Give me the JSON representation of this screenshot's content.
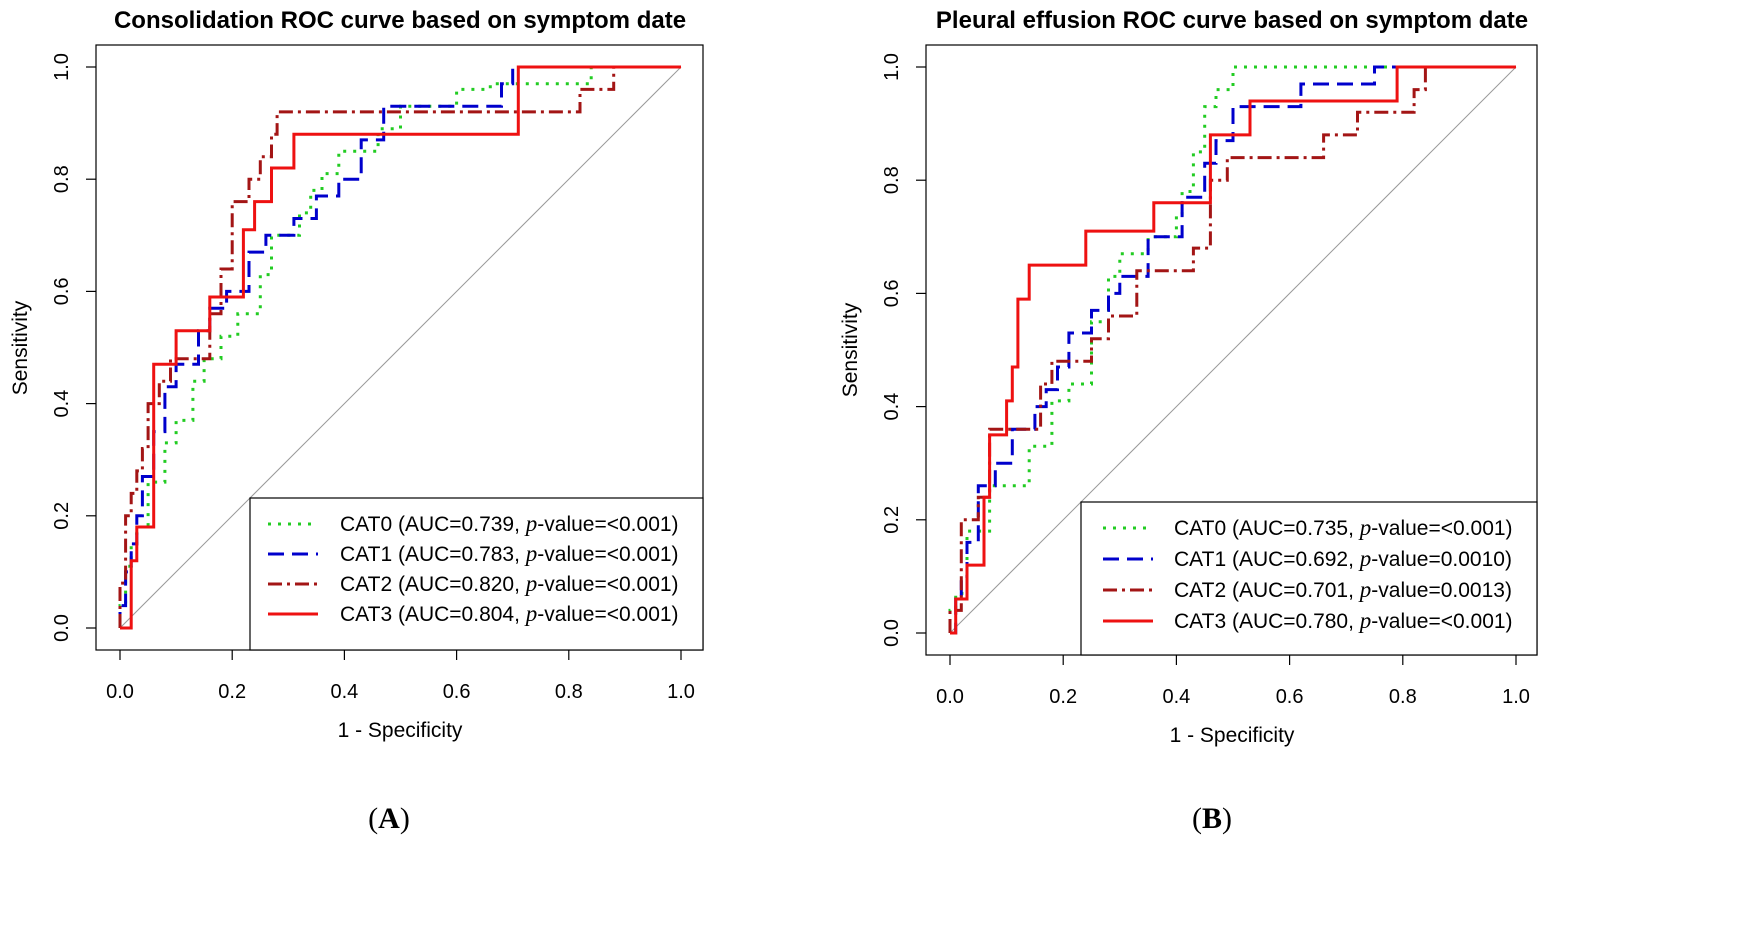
{
  "chart_data": [
    {
      "type": "line",
      "panel": "A",
      "panel_label": {
        "open": "(",
        "letter": "A",
        "close": ")"
      },
      "title": "Consolidation ROC curve based on symptom date",
      "xlabel": "1 - Specificity",
      "ylabel": "Sensitivity",
      "xlim": [
        0,
        1
      ],
      "ylim": [
        0,
        1
      ],
      "xticks": [
        0,
        0.2,
        0.4,
        0.6,
        0.8,
        1
      ],
      "xtick_labels": [
        "0.0",
        "0.2",
        "0.4",
        "0.6",
        "0.8",
        "1.0"
      ],
      "yticks": [
        0,
        0.2,
        0.4,
        0.6,
        0.8,
        1
      ],
      "ytick_labels": [
        "0.0",
        "0.2",
        "0.4",
        "0.6",
        "0.8",
        "1.0"
      ],
      "legend_position": "bottom-right",
      "diagonal": true,
      "series": [
        {
          "name": "CAT0",
          "color": "#22cc22",
          "dash": "dotted",
          "legend": {
            "prefix": "CAT0 (AUC=0.739, ",
            "p": "p",
            "suffix": "-value=<0.001)"
          },
          "x": [
            0,
            0,
            0.01,
            0.01,
            0.02,
            0.02,
            0.03,
            0.03,
            0.05,
            0.05,
            0.08,
            0.08,
            0.1,
            0.1,
            0.13,
            0.13,
            0.15,
            0.15,
            0.18,
            0.18,
            0.21,
            0.21,
            0.25,
            0.25,
            0.27,
            0.27,
            0.32,
            0.32,
            0.34,
            0.34,
            0.36,
            0.36,
            0.39,
            0.39,
            0.46,
            0.46,
            0.5,
            0.5,
            0.6,
            0.6,
            0.66,
            0.66,
            0.84,
            0.84,
            1.0
          ],
          "y": [
            0,
            0.04,
            0.04,
            0.11,
            0.11,
            0.15,
            0.15,
            0.18,
            0.18,
            0.26,
            0.26,
            0.33,
            0.33,
            0.37,
            0.37,
            0.44,
            0.44,
            0.48,
            0.48,
            0.52,
            0.52,
            0.56,
            0.56,
            0.63,
            0.63,
            0.7,
            0.7,
            0.74,
            0.74,
            0.78,
            0.78,
            0.81,
            0.81,
            0.85,
            0.85,
            0.89,
            0.89,
            0.93,
            0.93,
            0.96,
            0.96,
            0.97,
            0.97,
            1.0,
            1.0
          ]
        },
        {
          "name": "CAT1",
          "color": "#0000cc",
          "dash": "dashed",
          "legend": {
            "prefix": "CAT1 (AUC=0.783, ",
            "p": "p",
            "suffix": "-value=<0.001)"
          },
          "x": [
            0,
            0,
            0.01,
            0.01,
            0.02,
            0.02,
            0.03,
            0.03,
            0.04,
            0.04,
            0.06,
            0.06,
            0.08,
            0.08,
            0.1,
            0.1,
            0.14,
            0.14,
            0.16,
            0.16,
            0.19,
            0.19,
            0.23,
            0.23,
            0.26,
            0.26,
            0.31,
            0.31,
            0.35,
            0.35,
            0.39,
            0.39,
            0.43,
            0.43,
            0.47,
            0.47,
            0.62,
            0.62,
            0.68,
            0.68,
            0.7,
            0.7,
            1.0
          ],
          "y": [
            0,
            0.04,
            0.04,
            0.1,
            0.1,
            0.15,
            0.15,
            0.2,
            0.2,
            0.27,
            0.27,
            0.35,
            0.35,
            0.43,
            0.43,
            0.47,
            0.47,
            0.53,
            0.53,
            0.57,
            0.57,
            0.6,
            0.6,
            0.67,
            0.67,
            0.7,
            0.7,
            0.73,
            0.73,
            0.77,
            0.77,
            0.8,
            0.8,
            0.87,
            0.87,
            0.93,
            0.93,
            0.93,
            0.93,
            0.97,
            0.97,
            1.0,
            1.0
          ]
        },
        {
          "name": "CAT2",
          "color": "#a31515",
          "dash": "dashdot",
          "legend": {
            "prefix": "CAT2 (AUC=0.820, ",
            "p": "p",
            "suffix": "-value=<0.001)"
          },
          "x": [
            0,
            0,
            0.01,
            0.01,
            0.02,
            0.02,
            0.03,
            0.03,
            0.04,
            0.04,
            0.05,
            0.05,
            0.07,
            0.07,
            0.09,
            0.09,
            0.11,
            0.11,
            0.16,
            0.16,
            0.18,
            0.18,
            0.2,
            0.2,
            0.23,
            0.23,
            0.25,
            0.25,
            0.27,
            0.27,
            0.28,
            0.28,
            0.78,
            0.78,
            0.82,
            0.82,
            0.88,
            0.88,
            1.0
          ],
          "y": [
            0,
            0.08,
            0.08,
            0.2,
            0.2,
            0.24,
            0.24,
            0.28,
            0.28,
            0.32,
            0.32,
            0.4,
            0.4,
            0.44,
            0.44,
            0.48,
            0.48,
            0.48,
            0.48,
            0.56,
            0.56,
            0.64,
            0.64,
            0.76,
            0.76,
            0.8,
            0.8,
            0.84,
            0.84,
            0.88,
            0.88,
            0.92,
            0.92,
            0.92,
            0.92,
            0.96,
            0.96,
            1.0,
            1.0
          ]
        },
        {
          "name": "CAT3",
          "color": "#ee1111",
          "dash": "solid",
          "legend": {
            "prefix": "CAT3 (AUC=0.804, ",
            "p": "p",
            "suffix": "-value=<0.001)"
          },
          "x": [
            0,
            0.02,
            0.02,
            0.03,
            0.03,
            0.06,
            0.06,
            0.1,
            0.1,
            0.16,
            0.16,
            0.22,
            0.22,
            0.24,
            0.24,
            0.27,
            0.27,
            0.31,
            0.31,
            0.71,
            0.71,
            1.0
          ],
          "y": [
            0,
            0,
            0.12,
            0.12,
            0.18,
            0.18,
            0.47,
            0.47,
            0.53,
            0.53,
            0.59,
            0.59,
            0.71,
            0.71,
            0.76,
            0.76,
            0.82,
            0.82,
            0.88,
            0.88,
            1.0,
            1.0
          ]
        }
      ]
    },
    {
      "type": "line",
      "panel": "B",
      "panel_label": {
        "open": "(",
        "letter": "B",
        "close": ")"
      },
      "title": "Pleural effusion ROC curve based on symptom date",
      "xlabel": "1 - Specificity",
      "ylabel": "Sensitivity",
      "xlim": [
        0,
        1
      ],
      "ylim": [
        0,
        1
      ],
      "xticks": [
        0,
        0.2,
        0.4,
        0.6,
        0.8,
        1
      ],
      "xtick_labels": [
        "0.0",
        "0.2",
        "0.4",
        "0.6",
        "0.8",
        "1.0"
      ],
      "yticks": [
        0,
        0.2,
        0.4,
        0.6,
        0.8,
        1
      ],
      "ytick_labels": [
        "0.0",
        "0.2",
        "0.4",
        "0.6",
        "0.8",
        "1.0"
      ],
      "legend_position": "bottom-right",
      "diagonal": true,
      "series": [
        {
          "name": "CAT0",
          "color": "#22cc22",
          "dash": "dotted",
          "legend": {
            "prefix": "CAT0 (AUC=0.735, ",
            "p": "p",
            "suffix": "-value=<0.001)"
          },
          "x": [
            0,
            0,
            0.01,
            0.01,
            0.03,
            0.03,
            0.07,
            0.07,
            0.14,
            0.14,
            0.18,
            0.18,
            0.21,
            0.21,
            0.25,
            0.25,
            0.28,
            0.28,
            0.3,
            0.3,
            0.35,
            0.35,
            0.4,
            0.4,
            0.41,
            0.41,
            0.43,
            0.43,
            0.45,
            0.45,
            0.47,
            0.47,
            0.5,
            0.5,
            0.66,
            0.66,
            1.0
          ],
          "y": [
            0,
            0.04,
            0.04,
            0.07,
            0.07,
            0.18,
            0.18,
            0.26,
            0.26,
            0.33,
            0.33,
            0.41,
            0.41,
            0.44,
            0.44,
            0.55,
            0.55,
            0.63,
            0.63,
            0.67,
            0.67,
            0.7,
            0.7,
            0.74,
            0.74,
            0.78,
            0.78,
            0.85,
            0.85,
            0.93,
            0.93,
            0.96,
            0.96,
            1.0,
            1.0,
            1.0,
            1.0
          ]
        },
        {
          "name": "CAT1",
          "color": "#0000cc",
          "dash": "dashed",
          "legend": {
            "prefix": "CAT1 (AUC=0.692, ",
            "p": "p",
            "suffix": "-value=0.0010)"
          },
          "x": [
            0,
            0.01,
            0.01,
            0.02,
            0.02,
            0.03,
            0.03,
            0.05,
            0.05,
            0.08,
            0.08,
            0.11,
            0.11,
            0.15,
            0.15,
            0.17,
            0.17,
            0.19,
            0.19,
            0.21,
            0.21,
            0.25,
            0.25,
            0.28,
            0.28,
            0.3,
            0.3,
            0.35,
            0.35,
            0.41,
            0.41,
            0.45,
            0.45,
            0.47,
            0.47,
            0.5,
            0.5,
            0.62,
            0.62,
            0.75,
            0.75,
            0.78,
            0.78,
            1.0
          ],
          "y": [
            0,
            0,
            0.06,
            0.06,
            0.1,
            0.1,
            0.16,
            0.16,
            0.26,
            0.26,
            0.3,
            0.3,
            0.36,
            0.36,
            0.4,
            0.4,
            0.43,
            0.43,
            0.47,
            0.47,
            0.53,
            0.53,
            0.57,
            0.57,
            0.6,
            0.6,
            0.63,
            0.63,
            0.7,
            0.7,
            0.77,
            0.77,
            0.83,
            0.83,
            0.87,
            0.87,
            0.93,
            0.93,
            0.97,
            0.97,
            1.0,
            1.0,
            1.0,
            1.0
          ]
        },
        {
          "name": "CAT2",
          "color": "#a31515",
          "dash": "dashdot",
          "legend": {
            "prefix": "CAT2 (AUC=0.701, ",
            "p": "p",
            "suffix": "-value=0.0013)"
          },
          "x": [
            0,
            0,
            0.02,
            0.02,
            0.05,
            0.05,
            0.07,
            0.07,
            0.16,
            0.16,
            0.18,
            0.18,
            0.25,
            0.25,
            0.28,
            0.28,
            0.33,
            0.33,
            0.43,
            0.43,
            0.46,
            0.46,
            0.49,
            0.49,
            0.66,
            0.66,
            0.72,
            0.72,
            0.82,
            0.82,
            0.84,
            0.84,
            1.0
          ],
          "y": [
            0,
            0.04,
            0.04,
            0.2,
            0.2,
            0.24,
            0.24,
            0.36,
            0.36,
            0.44,
            0.44,
            0.48,
            0.48,
            0.52,
            0.52,
            0.56,
            0.56,
            0.64,
            0.64,
            0.68,
            0.68,
            0.8,
            0.8,
            0.84,
            0.84,
            0.88,
            0.88,
            0.92,
            0.92,
            0.96,
            0.96,
            1.0,
            1.0
          ]
        },
        {
          "name": "CAT3",
          "color": "#ee1111",
          "dash": "solid",
          "legend": {
            "prefix": "CAT3 (AUC=0.780, ",
            "p": "p",
            "suffix": "-value=<0.001)"
          },
          "x": [
            0,
            0.01,
            0.01,
            0.03,
            0.03,
            0.06,
            0.06,
            0.07,
            0.07,
            0.1,
            0.1,
            0.11,
            0.11,
            0.12,
            0.12,
            0.14,
            0.14,
            0.24,
            0.24,
            0.36,
            0.36,
            0.46,
            0.46,
            0.53,
            0.53,
            0.79,
            0.79,
            1.0
          ],
          "y": [
            0,
            0,
            0.06,
            0.06,
            0.12,
            0.12,
            0.24,
            0.24,
            0.35,
            0.35,
            0.41,
            0.41,
            0.47,
            0.47,
            0.59,
            0.59,
            0.65,
            0.65,
            0.71,
            0.71,
            0.76,
            0.76,
            0.88,
            0.88,
            0.94,
            0.94,
            1.0,
            1.0
          ]
        }
      ]
    }
  ]
}
